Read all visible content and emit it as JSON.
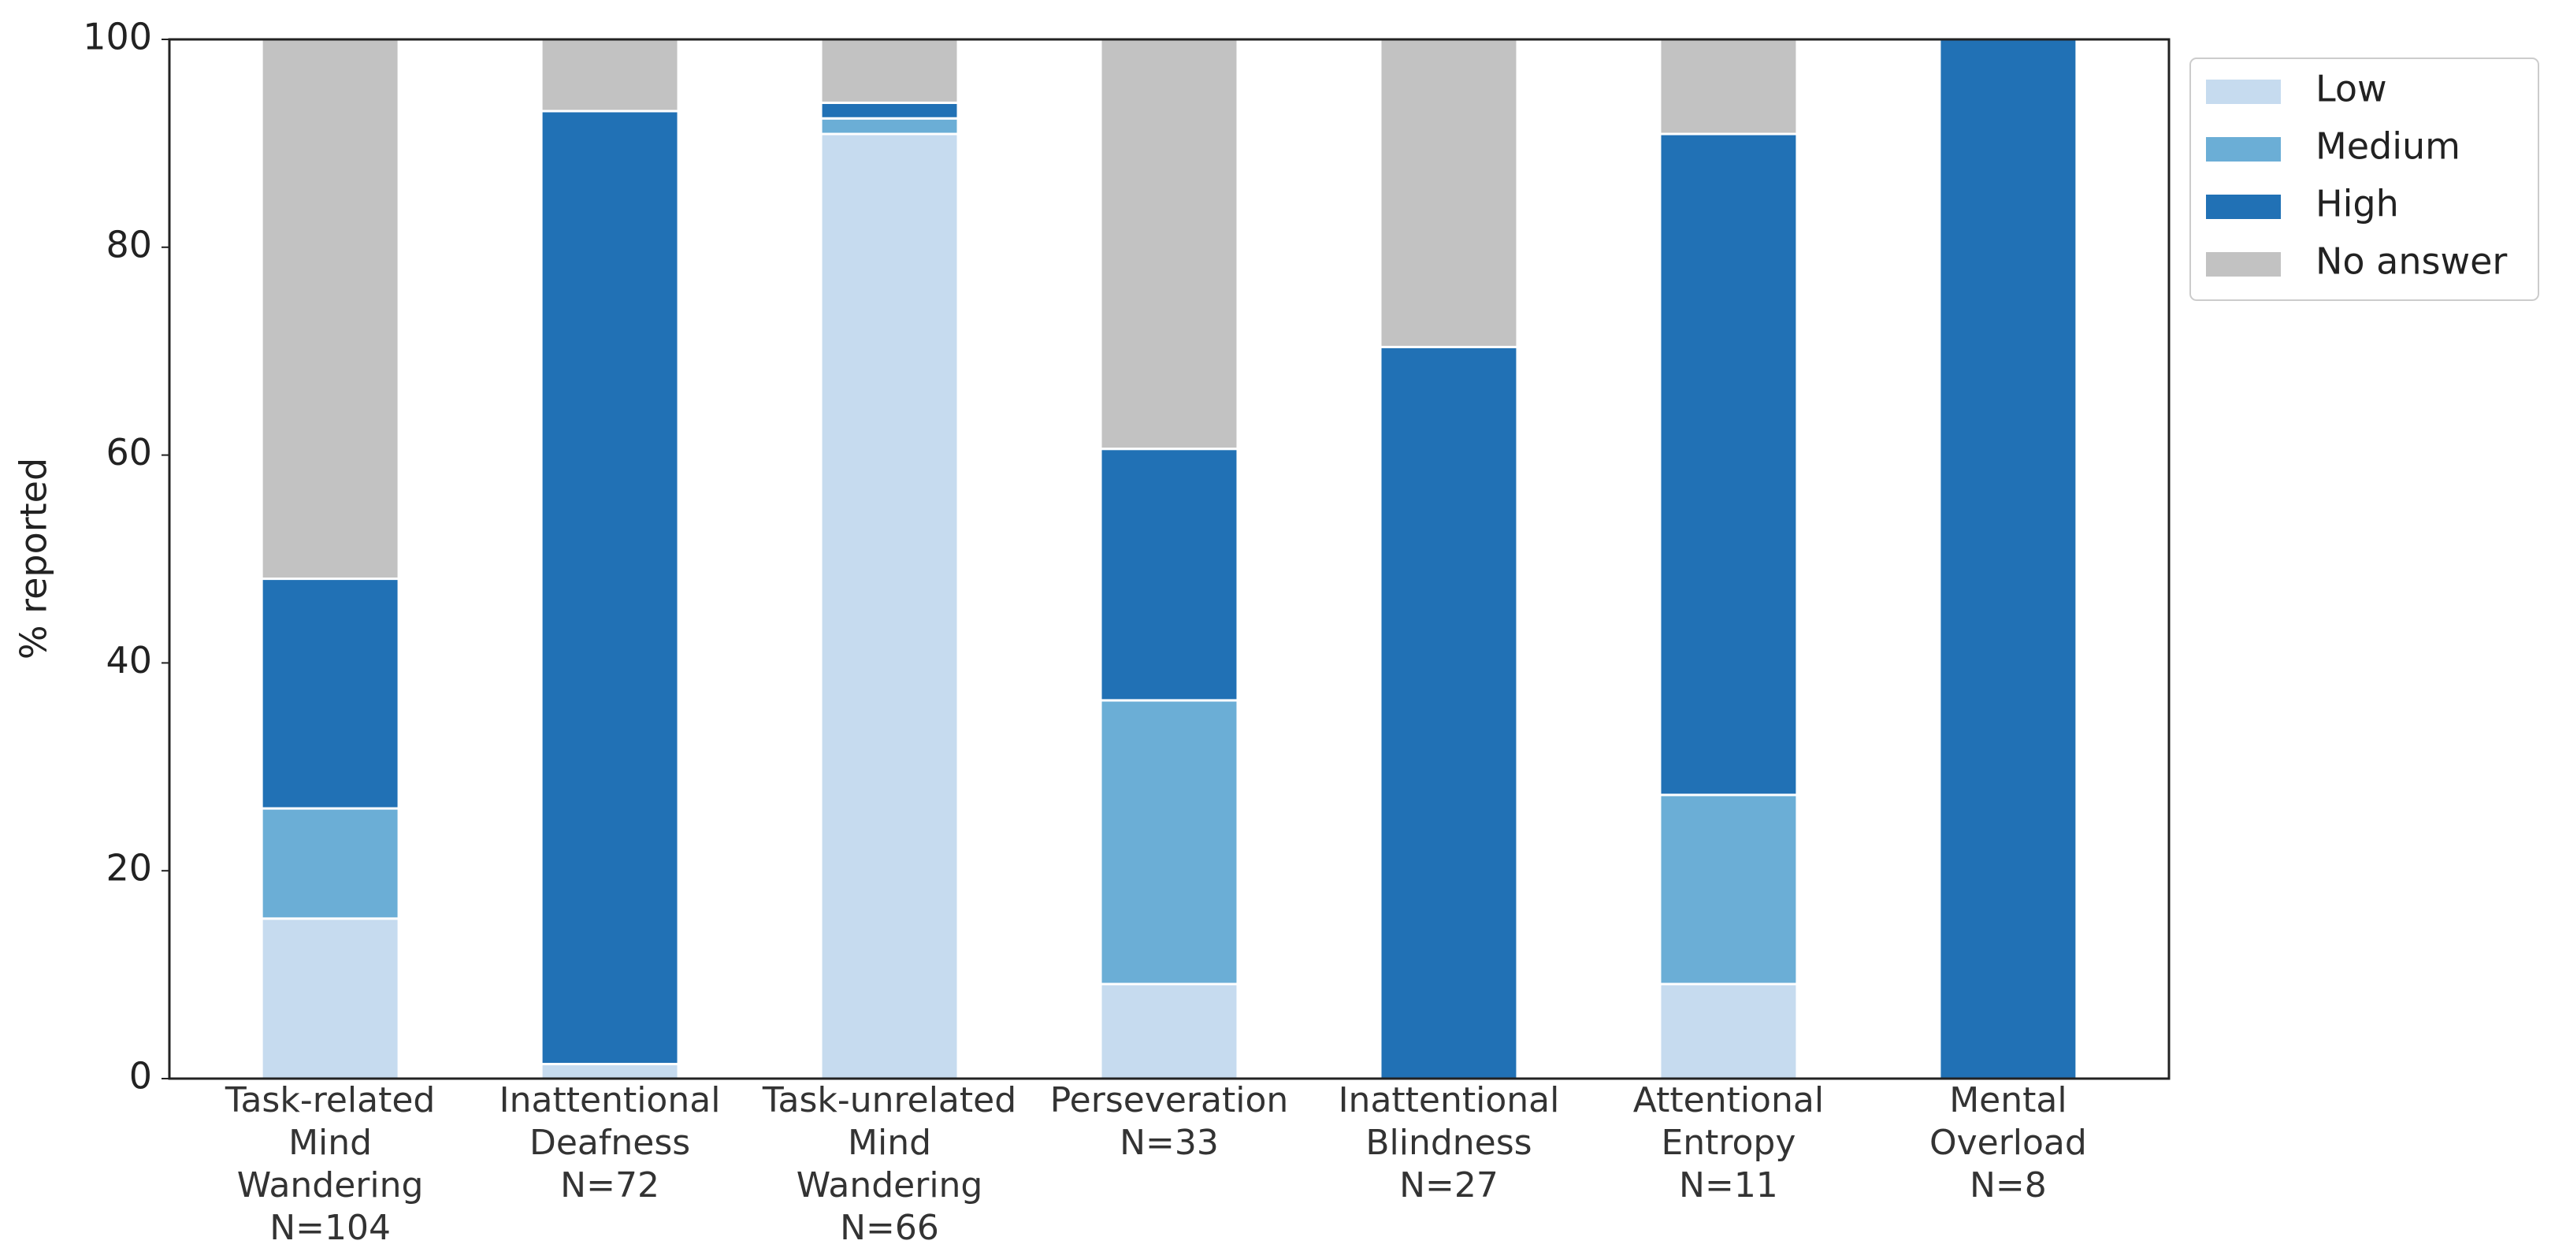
{
  "chart_data": {
    "type": "stacked_bar",
    "y_label": "% reported",
    "categories": [
      [
        "Task-related",
        "Mind",
        "Wandering",
        "N=104"
      ],
      [
        "Inattentional",
        "Deafness",
        "N=72"
      ],
      [
        "Task-unrelated",
        "Mind",
        "Wandering",
        "N=66"
      ],
      [
        "Perseveration",
        "N=33"
      ],
      [
        "Inattentional",
        "Blindness",
        "N=27"
      ],
      [
        "Attentional",
        "Entropy",
        "N=11"
      ],
      [
        "Mental",
        "Overload",
        "N=8"
      ]
    ],
    "series": [
      {
        "name": "Low",
        "color": "#c6dbef",
        "values": [
          15.4,
          1.4,
          90.9,
          9.1,
          0,
          9.1,
          0
        ]
      },
      {
        "name": "Medium",
        "color": "#6baed6",
        "values": [
          10.6,
          0,
          1.5,
          27.3,
          0,
          18.2,
          0
        ]
      },
      {
        "name": "High",
        "color": "#2171b5",
        "values": [
          22.1,
          91.7,
          1.5,
          24.2,
          70.4,
          63.6,
          100
        ]
      },
      {
        "name": "No answer",
        "color": "#c2c2c2",
        "values": [
          51.9,
          6.9,
          6.1,
          39.4,
          29.6,
          9.1,
          0
        ]
      }
    ],
    "ylim": [
      0,
      100
    ],
    "yticks": [
      0,
      20,
      40,
      60,
      80,
      100
    ],
    "legend": "outside-upper-right"
  }
}
